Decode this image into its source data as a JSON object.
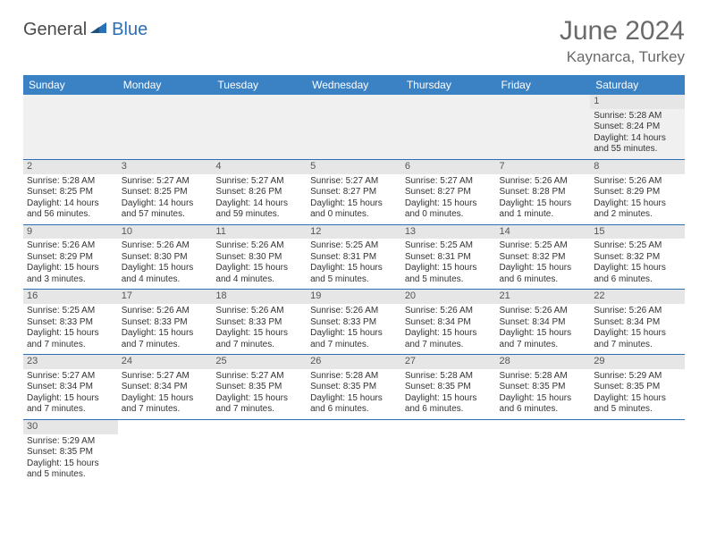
{
  "logo": {
    "text1": "General",
    "text2": "Blue"
  },
  "title": "June 2024",
  "location": "Kaynarca, Turkey",
  "colors": {
    "header_bg": "#3b82c4",
    "header_text": "#ffffff",
    "rule": "#2b6fb5",
    "daynum_bg": "#e6e6e6",
    "title_text": "#6a6a6a"
  },
  "weekdays": [
    "Sunday",
    "Monday",
    "Tuesday",
    "Wednesday",
    "Thursday",
    "Friday",
    "Saturday"
  ],
  "weeks": [
    [
      null,
      null,
      null,
      null,
      null,
      null,
      {
        "d": "1",
        "sr": "Sunrise: 5:28 AM",
        "ss": "Sunset: 8:24 PM",
        "dl1": "Daylight: 14 hours",
        "dl2": "and 55 minutes."
      }
    ],
    [
      {
        "d": "2",
        "sr": "Sunrise: 5:28 AM",
        "ss": "Sunset: 8:25 PM",
        "dl1": "Daylight: 14 hours",
        "dl2": "and 56 minutes."
      },
      {
        "d": "3",
        "sr": "Sunrise: 5:27 AM",
        "ss": "Sunset: 8:25 PM",
        "dl1": "Daylight: 14 hours",
        "dl2": "and 57 minutes."
      },
      {
        "d": "4",
        "sr": "Sunrise: 5:27 AM",
        "ss": "Sunset: 8:26 PM",
        "dl1": "Daylight: 14 hours",
        "dl2": "and 59 minutes."
      },
      {
        "d": "5",
        "sr": "Sunrise: 5:27 AM",
        "ss": "Sunset: 8:27 PM",
        "dl1": "Daylight: 15 hours",
        "dl2": "and 0 minutes."
      },
      {
        "d": "6",
        "sr": "Sunrise: 5:27 AM",
        "ss": "Sunset: 8:27 PM",
        "dl1": "Daylight: 15 hours",
        "dl2": "and 0 minutes."
      },
      {
        "d": "7",
        "sr": "Sunrise: 5:26 AM",
        "ss": "Sunset: 8:28 PM",
        "dl1": "Daylight: 15 hours",
        "dl2": "and 1 minute."
      },
      {
        "d": "8",
        "sr": "Sunrise: 5:26 AM",
        "ss": "Sunset: 8:29 PM",
        "dl1": "Daylight: 15 hours",
        "dl2": "and 2 minutes."
      }
    ],
    [
      {
        "d": "9",
        "sr": "Sunrise: 5:26 AM",
        "ss": "Sunset: 8:29 PM",
        "dl1": "Daylight: 15 hours",
        "dl2": "and 3 minutes."
      },
      {
        "d": "10",
        "sr": "Sunrise: 5:26 AM",
        "ss": "Sunset: 8:30 PM",
        "dl1": "Daylight: 15 hours",
        "dl2": "and 4 minutes."
      },
      {
        "d": "11",
        "sr": "Sunrise: 5:26 AM",
        "ss": "Sunset: 8:30 PM",
        "dl1": "Daylight: 15 hours",
        "dl2": "and 4 minutes."
      },
      {
        "d": "12",
        "sr": "Sunrise: 5:25 AM",
        "ss": "Sunset: 8:31 PM",
        "dl1": "Daylight: 15 hours",
        "dl2": "and 5 minutes."
      },
      {
        "d": "13",
        "sr": "Sunrise: 5:25 AM",
        "ss": "Sunset: 8:31 PM",
        "dl1": "Daylight: 15 hours",
        "dl2": "and 5 minutes."
      },
      {
        "d": "14",
        "sr": "Sunrise: 5:25 AM",
        "ss": "Sunset: 8:32 PM",
        "dl1": "Daylight: 15 hours",
        "dl2": "and 6 minutes."
      },
      {
        "d": "15",
        "sr": "Sunrise: 5:25 AM",
        "ss": "Sunset: 8:32 PM",
        "dl1": "Daylight: 15 hours",
        "dl2": "and 6 minutes."
      }
    ],
    [
      {
        "d": "16",
        "sr": "Sunrise: 5:25 AM",
        "ss": "Sunset: 8:33 PM",
        "dl1": "Daylight: 15 hours",
        "dl2": "and 7 minutes."
      },
      {
        "d": "17",
        "sr": "Sunrise: 5:26 AM",
        "ss": "Sunset: 8:33 PM",
        "dl1": "Daylight: 15 hours",
        "dl2": "and 7 minutes."
      },
      {
        "d": "18",
        "sr": "Sunrise: 5:26 AM",
        "ss": "Sunset: 8:33 PM",
        "dl1": "Daylight: 15 hours",
        "dl2": "and 7 minutes."
      },
      {
        "d": "19",
        "sr": "Sunrise: 5:26 AM",
        "ss": "Sunset: 8:33 PM",
        "dl1": "Daylight: 15 hours",
        "dl2": "and 7 minutes."
      },
      {
        "d": "20",
        "sr": "Sunrise: 5:26 AM",
        "ss": "Sunset: 8:34 PM",
        "dl1": "Daylight: 15 hours",
        "dl2": "and 7 minutes."
      },
      {
        "d": "21",
        "sr": "Sunrise: 5:26 AM",
        "ss": "Sunset: 8:34 PM",
        "dl1": "Daylight: 15 hours",
        "dl2": "and 7 minutes."
      },
      {
        "d": "22",
        "sr": "Sunrise: 5:26 AM",
        "ss": "Sunset: 8:34 PM",
        "dl1": "Daylight: 15 hours",
        "dl2": "and 7 minutes."
      }
    ],
    [
      {
        "d": "23",
        "sr": "Sunrise: 5:27 AM",
        "ss": "Sunset: 8:34 PM",
        "dl1": "Daylight: 15 hours",
        "dl2": "and 7 minutes."
      },
      {
        "d": "24",
        "sr": "Sunrise: 5:27 AM",
        "ss": "Sunset: 8:34 PM",
        "dl1": "Daylight: 15 hours",
        "dl2": "and 7 minutes."
      },
      {
        "d": "25",
        "sr": "Sunrise: 5:27 AM",
        "ss": "Sunset: 8:35 PM",
        "dl1": "Daylight: 15 hours",
        "dl2": "and 7 minutes."
      },
      {
        "d": "26",
        "sr": "Sunrise: 5:28 AM",
        "ss": "Sunset: 8:35 PM",
        "dl1": "Daylight: 15 hours",
        "dl2": "and 6 minutes."
      },
      {
        "d": "27",
        "sr": "Sunrise: 5:28 AM",
        "ss": "Sunset: 8:35 PM",
        "dl1": "Daylight: 15 hours",
        "dl2": "and 6 minutes."
      },
      {
        "d": "28",
        "sr": "Sunrise: 5:28 AM",
        "ss": "Sunset: 8:35 PM",
        "dl1": "Daylight: 15 hours",
        "dl2": "and 6 minutes."
      },
      {
        "d": "29",
        "sr": "Sunrise: 5:29 AM",
        "ss": "Sunset: 8:35 PM",
        "dl1": "Daylight: 15 hours",
        "dl2": "and 5 minutes."
      }
    ],
    [
      {
        "d": "30",
        "sr": "Sunrise: 5:29 AM",
        "ss": "Sunset: 8:35 PM",
        "dl1": "Daylight: 15 hours",
        "dl2": "and 5 minutes."
      },
      null,
      null,
      null,
      null,
      null,
      null
    ]
  ]
}
